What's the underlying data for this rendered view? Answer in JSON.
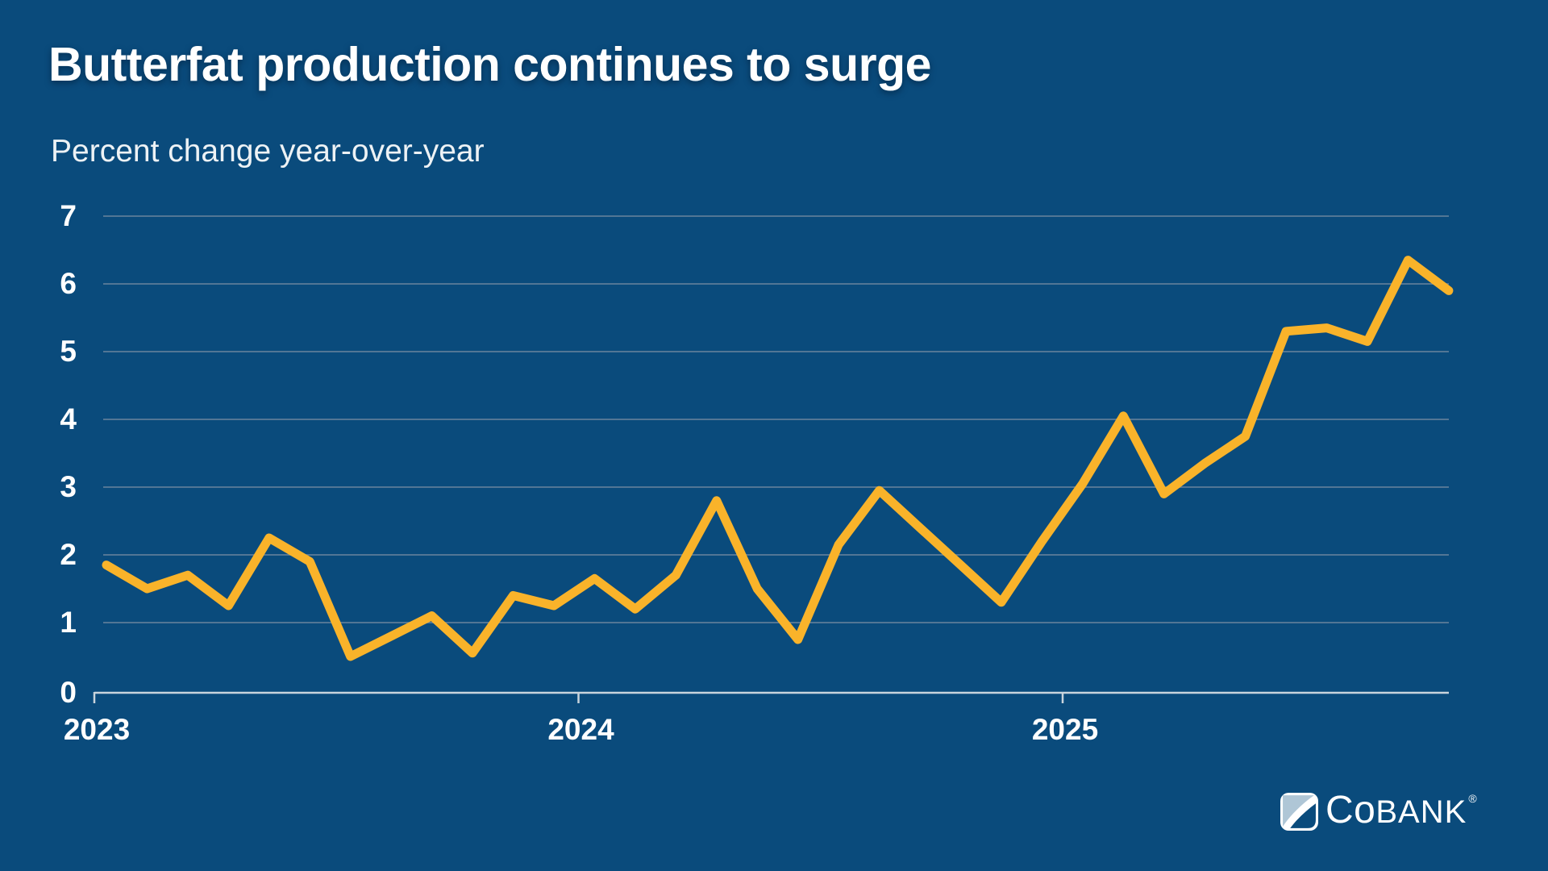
{
  "page": {
    "title": "Butterfat production continues to surge",
    "subtitle": "Percent change year-over-year"
  },
  "logo": {
    "c": "C",
    "o": "o",
    "bank": "BANK",
    "registered": "®"
  },
  "colors": {
    "background": "#0A4B7C",
    "line": "#F9B32A",
    "grid": "#5C7D99",
    "axis": "#C9D4DC",
    "text": "#FFFFFF",
    "subtitle_text": "#EDF2F5",
    "logo_light": "#AFC6D6"
  },
  "chart_data": {
    "type": "line",
    "title": "Butterfat production continues to surge",
    "ylabel": "Percent change year-over-year",
    "series_name": "Butterfat production, percent change year-over-year",
    "x": [
      "2023-01",
      "2023-02",
      "2023-03",
      "2023-04",
      "2023-05",
      "2023-06",
      "2023-07",
      "2023-08",
      "2023-09",
      "2023-10",
      "2023-11",
      "2023-12",
      "2024-01",
      "2024-02",
      "2024-03",
      "2024-04",
      "2024-05",
      "2024-06",
      "2024-07",
      "2024-08",
      "2024-09",
      "2024-10",
      "2024-11",
      "2024-12",
      "2025-01",
      "2025-02",
      "2025-03",
      "2025-04",
      "2025-05",
      "2025-06",
      "2025-07",
      "2025-08",
      "2025-09",
      "2025-10"
    ],
    "values": [
      1.85,
      1.5,
      1.7,
      1.25,
      2.25,
      1.9,
      0.5,
      0.8,
      1.1,
      0.55,
      1.4,
      1.25,
      1.65,
      1.2,
      1.7,
      2.8,
      1.5,
      0.75,
      2.15,
      2.95,
      2.4,
      1.85,
      1.3,
      2.2,
      3.05,
      4.05,
      2.9,
      3.35,
      3.75,
      5.3,
      5.35,
      5.15,
      6.35,
      5.9
    ],
    "y_ticks": [
      0,
      1,
      2,
      3,
      4,
      5,
      6,
      7
    ],
    "ylim": [
      0,
      7
    ],
    "x_ticks": [
      {
        "label": "2023",
        "year_offset": 0
      },
      {
        "label": "2024",
        "year_offset": 1
      },
      {
        "label": "2025",
        "year_offset": 2
      }
    ],
    "grid": true,
    "legend": false
  }
}
